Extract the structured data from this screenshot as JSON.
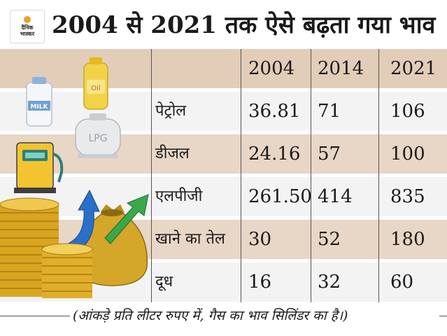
{
  "header": {
    "logo_text": "दैनिक\nभास्कर",
    "title": "2004 से 2021 तक ऐसे बढ़ता गया भाव"
  },
  "illustration": {
    "milk_label": "MILK",
    "oil_label": "Oil",
    "lpg_label": "LPG"
  },
  "table": {
    "columns": [
      "2004",
      "2014",
      "2021"
    ],
    "rows": [
      {
        "label": "पेट्रोल",
        "values": [
          "36.81",
          "71",
          "106"
        ]
      },
      {
        "label": "डीजल",
        "values": [
          "24.16",
          "57",
          "100"
        ]
      },
      {
        "label": "एलपीजी",
        "values": [
          "261.50",
          "414",
          "835"
        ]
      },
      {
        "label": "खाने का तेल",
        "values": [
          "30",
          "52",
          "180"
        ]
      },
      {
        "label": "दूध",
        "values": [
          "16",
          "32",
          "60"
        ]
      }
    ]
  },
  "footer": {
    "note": "(आंकड़े प्रति लीटर रुपए में, गैस का भाव सिलिंडर का है।)"
  },
  "colors": {
    "row_shaded": "#e8d6c6",
    "row_plain": "#f3f3f3",
    "coin_gold": "#d9a520",
    "arrow_blue": "#2a6fc9",
    "arrow_green": "#3aa84a"
  }
}
